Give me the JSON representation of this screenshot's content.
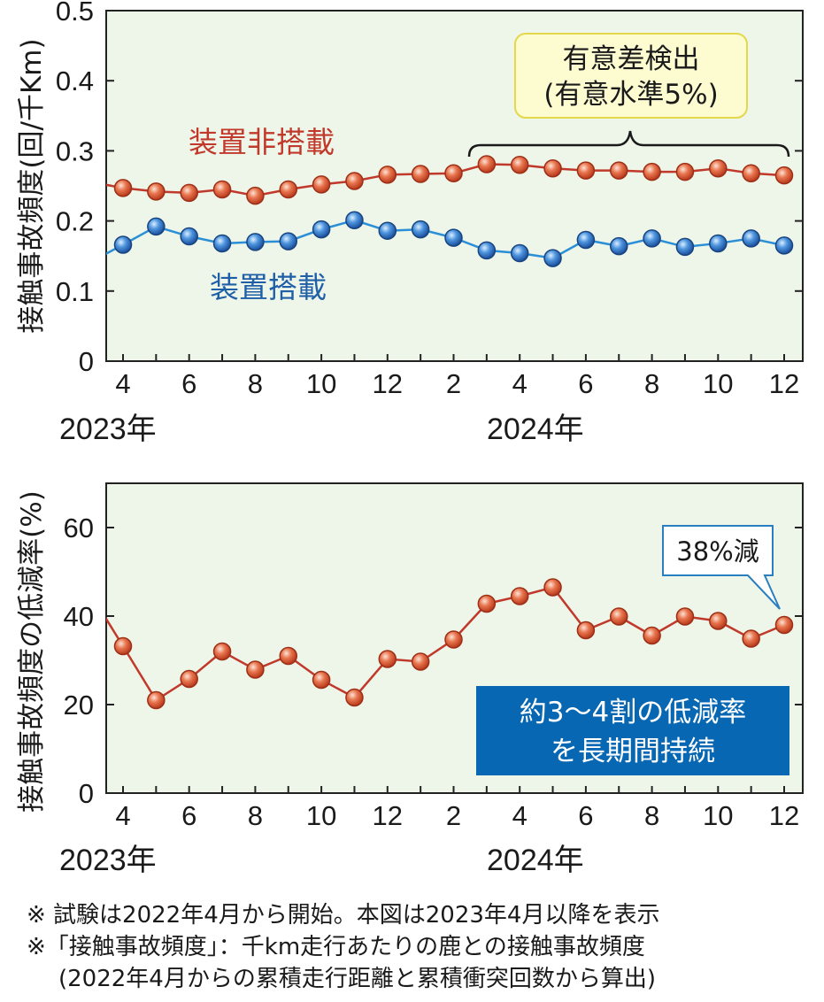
{
  "chart_data": [
    {
      "type": "line",
      "ylabel": "接触事故頻度(回/千Km)",
      "ylim": [
        0,
        0.5
      ],
      "yticks": [
        "0",
        "0.1",
        "0.2",
        "0.3",
        "0.4",
        "0.5"
      ],
      "xticks": [
        "4",
        "6",
        "8",
        "10",
        "12",
        "2",
        "4",
        "6",
        "8",
        "10",
        "12"
      ],
      "year_labels": [
        "2023年",
        "2024年"
      ],
      "grid": false,
      "series": [
        {
          "name": "装置非搭載",
          "color": "#c0392b",
          "values": [
            0.247,
            0.242,
            0.24,
            0.245,
            0.236,
            0.245,
            0.252,
            0.257,
            0.266,
            0.267,
            0.268,
            0.281,
            0.28,
            0.275,
            0.272,
            0.272,
            0.27,
            0.27,
            0.275,
            0.268,
            0.265
          ]
        },
        {
          "name": "装置搭載",
          "color": "#1f77c8",
          "values": [
            0.166,
            0.192,
            0.178,
            0.168,
            0.17,
            0.171,
            0.188,
            0.201,
            0.186,
            0.188,
            0.176,
            0.158,
            0.154,
            0.147,
            0.173,
            0.164,
            0.175,
            0.163,
            0.168,
            0.175,
            0.165
          ]
        }
      ],
      "annotations": [
        {
          "line1": "有意差検出",
          "line2": "(有意水準5%)"
        }
      ]
    },
    {
      "type": "line",
      "ylabel": "接触事故頻度の低減率(%)",
      "ylim": [
        0,
        70
      ],
      "yticks": [
        "0",
        "20",
        "40",
        "60"
      ],
      "xticks": [
        "4",
        "6",
        "8",
        "10",
        "12",
        "2",
        "4",
        "6",
        "8",
        "10",
        "12"
      ],
      "year_labels": [
        "2023年",
        "2024年"
      ],
      "grid": false,
      "series": [
        {
          "color": "#c0392b",
          "values": [
            33.2,
            21.0,
            25.8,
            32.0,
            27.9,
            31.0,
            25.6,
            21.6,
            30.3,
            29.7,
            34.7,
            42.8,
            44.5,
            46.5,
            36.8,
            39.9,
            35.6,
            39.9,
            38.9,
            34.9,
            38.0
          ]
        }
      ],
      "annotations": [
        {
          "text": "38%減"
        },
        {
          "line1": "約3〜4割の低減率",
          "line2": "を長期間持続"
        }
      ]
    }
  ],
  "footnotes": [
    "※ 試験は2022年4月から開始。本図は2023年4月以降を表示",
    "※「接触事故頻度」：千km走行あたりの鹿との接触事故頻度",
    "(2022年4月からの累積走行距離と累積衝突回数から算出)"
  ]
}
